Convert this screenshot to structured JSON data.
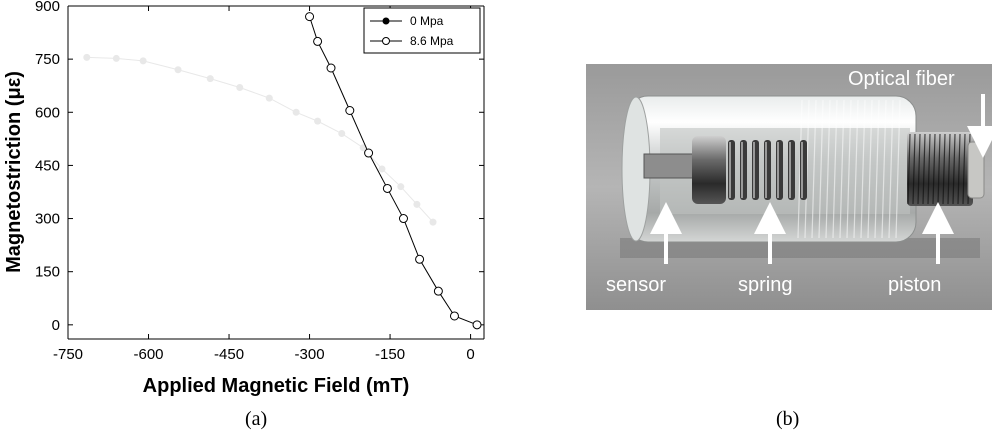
{
  "chart_data": {
    "type": "line",
    "xlabel": "Applied Magnetic Field (mT)",
    "ylabel": "Magnetostriction  (με)",
    "xlim": [
      -750,
      25
    ],
    "ylim": [
      -40,
      900
    ],
    "xticks": [
      -750,
      -600,
      -450,
      -300,
      -150,
      0
    ],
    "yticks": [
      0,
      150,
      300,
      450,
      600,
      750,
      900
    ],
    "legend_position": "top-right",
    "series": [
      {
        "name": "0 Mpa",
        "marker": "filled-circle",
        "color": "#e8e8e8",
        "x": [
          -715,
          -660,
          -610,
          -545,
          -485,
          -430,
          -375,
          -325,
          -285,
          -240,
          -200,
          -165,
          -130,
          -100,
          -70
        ],
        "y": [
          755,
          752,
          745,
          720,
          695,
          670,
          640,
          600,
          575,
          540,
          500,
          440,
          390,
          340,
          290
        ]
      },
      {
        "name": "8.6 Mpa",
        "marker": "open-circle",
        "color": "#000000",
        "x": [
          -300,
          -285,
          -260,
          -225,
          -190,
          -155,
          -125,
          -95,
          -60,
          -30,
          12
        ],
        "y": [
          870,
          800,
          725,
          605,
          485,
          385,
          300,
          185,
          95,
          25,
          0
        ]
      }
    ]
  },
  "captions": {
    "a": "(a)",
    "b": "(b)"
  },
  "photo": {
    "labels": {
      "optical_fiber": "Optical fiber",
      "sensor": "sensor",
      "spring": "spring",
      "piston": "piston"
    }
  }
}
